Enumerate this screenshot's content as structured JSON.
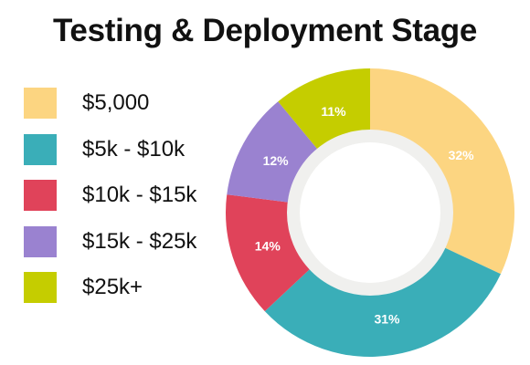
{
  "title": "Testing & Deployment Stage",
  "chart_data": {
    "type": "pie",
    "title": "Testing & Deployment Stage",
    "donut": true,
    "hole_color": "#f0f0ee",
    "categories": [
      "$5,000",
      "$5k - $10k",
      "$10k - $15k",
      "$15k - $25k",
      "$25k+"
    ],
    "values": [
      32,
      31,
      14,
      12,
      11
    ],
    "value_labels": [
      "32%",
      "31%",
      "14%",
      "12%",
      "11%"
    ],
    "colors": [
      "#fcd581",
      "#3aaeb8",
      "#e0435a",
      "#9a82d0",
      "#c5cd00"
    ],
    "legend_position": "left"
  }
}
